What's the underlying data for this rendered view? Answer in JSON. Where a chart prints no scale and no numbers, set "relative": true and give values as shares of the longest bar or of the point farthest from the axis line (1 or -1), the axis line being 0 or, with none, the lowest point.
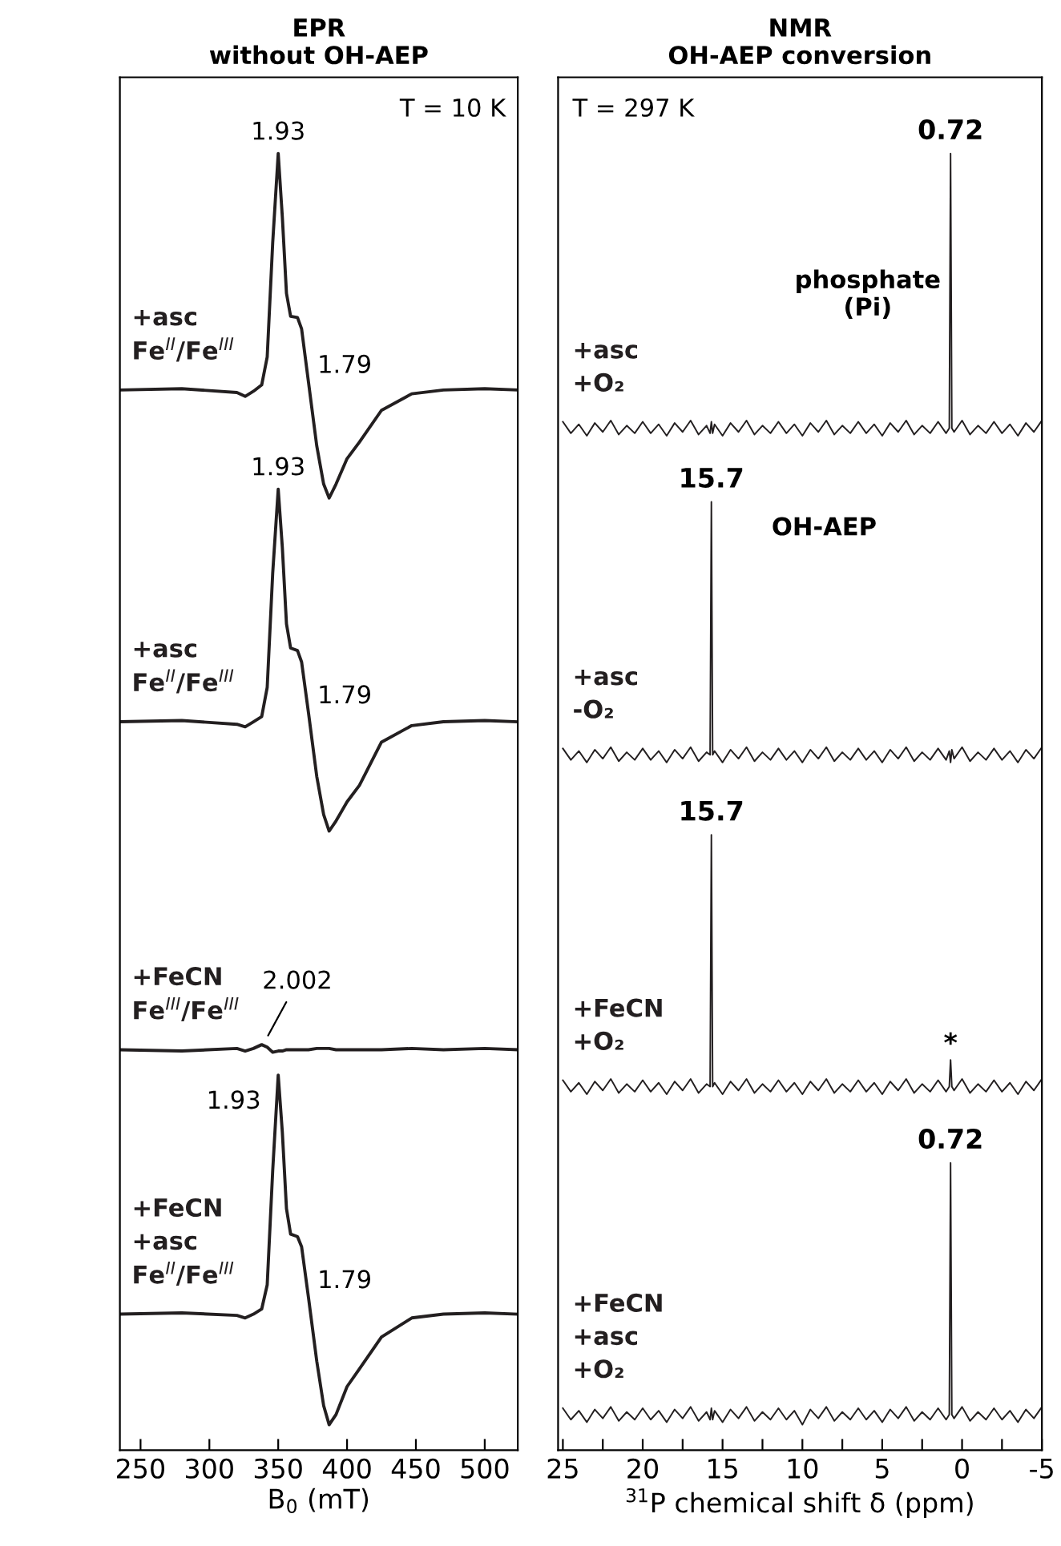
{
  "chart_data": [
    {
      "type": "line",
      "title": "EPR\nwithout OH-AEP",
      "xlabel": "B$_{0}$ (mT)",
      "relative": true,
      "tick_labels": "x",
      "xlim": [
        235,
        524
      ],
      "xticks": [
        250,
        300,
        350,
        400,
        450,
        500
      ],
      "x": [
        235,
        280,
        320,
        326,
        332,
        338,
        342,
        346,
        350,
        353,
        356,
        359,
        364,
        367,
        372,
        378,
        383,
        387,
        392,
        400,
        409,
        425,
        447,
        470,
        500,
        524
      ],
      "series": [
        {
          "name": "+asc\nFe$^{II}$/Fe$^{III}$",
          "color": "#231f20",
          "values": [
            0.814,
            0.815,
            0.812,
            0.809,
            0.813,
            0.818,
            0.84,
            0.93,
            1.0,
            0.95,
            0.89,
            0.872,
            0.871,
            0.862,
            0.82,
            0.77,
            0.74,
            0.729,
            0.74,
            0.76,
            0.773,
            0.798,
            0.811,
            0.814,
            0.815,
            0.814
          ]
        },
        {
          "name": "+asc\nFe$^{II}$/Fe$^{III}$",
          "color": "#231f20",
          "values": [
            0.553,
            0.554,
            0.551,
            0.549,
            0.553,
            0.557,
            0.58,
            0.67,
            0.736,
            0.69,
            0.63,
            0.611,
            0.609,
            0.6,
            0.56,
            0.51,
            0.48,
            0.467,
            0.475,
            0.49,
            0.503,
            0.537,
            0.55,
            0.553,
            0.554,
            0.553
          ]
        },
        {
          "name": "+FeCN\nFe$^{III}$/Fe$^{III}$",
          "color": "#231f20",
          "values": [
            0.295,
            0.294,
            0.296,
            0.294,
            0.296,
            0.299,
            0.297,
            0.293,
            0.294,
            0.294,
            0.295,
            0.295,
            0.295,
            0.295,
            0.295,
            0.296,
            0.296,
            0.296,
            0.295,
            0.295,
            0.295,
            0.295,
            0.296,
            0.295,
            0.296,
            0.295
          ]
        },
        {
          "name": "+FeCN\n+asc\nFe$^{II}$/Fe$^{III}$",
          "color": "#231f20",
          "values": [
            0.087,
            0.088,
            0.086,
            0.084,
            0.087,
            0.091,
            0.11,
            0.2,
            0.275,
            0.23,
            0.17,
            0.15,
            0.148,
            0.14,
            0.1,
            0.05,
            0.015,
            0.0,
            0.008,
            0.03,
            0.044,
            0.069,
            0.084,
            0.087,
            0.088,
            0.087
          ]
        }
      ],
      "annotations": [
        "T = 10 K",
        {
          "text": "1.93",
          "x": 350,
          "y": 1.0
        },
        {
          "text": "1.79",
          "x": 372,
          "y": 0.82
        },
        {
          "text": "1.93",
          "x": 350,
          "y": 0.736
        },
        {
          "text": "1.79",
          "x": 372,
          "y": 0.56
        },
        {
          "text": "2.002",
          "x": 338,
          "y": 0.297
        },
        {
          "text": "1.93",
          "x": 350,
          "y": 0.275
        },
        {
          "text": "1.79",
          "x": 372,
          "y": 0.1
        }
      ]
    },
    {
      "type": "line",
      "title": "NMR\nOH-AEP conversion",
      "xlabel": "$^{31}$P chemical shift δ (ppm)",
      "relative": true,
      "tick_labels": "x",
      "xlim": [
        25.3,
        -5
      ],
      "xticks": [
        25,
        {
          "value": 22.5,
          "label": null
        },
        20,
        {
          "value": 17.5,
          "label": null
        },
        15,
        {
          "value": 12.5,
          "label": null
        },
        10,
        {
          "value": 7.5,
          "label": null
        },
        5,
        {
          "value": 2.5,
          "label": null
        },
        0,
        {
          "value": -2.5,
          "label": null
        },
        -5
      ],
      "x": [
        25.0,
        24.5,
        24.0,
        23.5,
        23.0,
        22.5,
        22.0,
        21.5,
        21.0,
        20.5,
        20.0,
        19.5,
        19.0,
        18.5,
        18.0,
        17.5,
        17.0,
        16.5,
        16.0,
        15.78,
        15.7,
        15.62,
        15.5,
        15.0,
        14.5,
        14.0,
        13.5,
        13.0,
        12.5,
        12.0,
        11.5,
        11.0,
        10.5,
        10.0,
        9.5,
        9.0,
        8.5,
        8.0,
        7.5,
        7.0,
        6.5,
        6.0,
        5.5,
        5.0,
        4.5,
        4.0,
        3.5,
        3.0,
        2.5,
        2.0,
        1.5,
        1.0,
        0.8,
        0.72,
        0.64,
        0.5,
        0.0,
        -0.5,
        -1.0,
        -1.5,
        -2.0,
        -2.5,
        -3.0,
        -3.5,
        -4.0,
        -4.5,
        -5.0
      ],
      "series": [
        {
          "name": "+asc\n+O₂",
          "color": "#231f20",
          "values": [
            0.789,
            0.78,
            0.787,
            0.778,
            0.788,
            0.781,
            0.79,
            0.779,
            0.786,
            0.78,
            0.789,
            0.78,
            0.787,
            0.778,
            0.788,
            0.781,
            0.79,
            0.779,
            0.786,
            0.78,
            0.789,
            0.78,
            0.787,
            0.778,
            0.788,
            0.781,
            0.79,
            0.779,
            0.786,
            0.78,
            0.789,
            0.78,
            0.787,
            0.778,
            0.788,
            0.781,
            0.79,
            0.779,
            0.786,
            0.78,
            0.789,
            0.78,
            0.787,
            0.778,
            0.788,
            0.781,
            0.79,
            0.779,
            0.786,
            0.78,
            0.789,
            0.78,
            0.784,
            1.0,
            0.784,
            0.781,
            0.79,
            0.779,
            0.786,
            0.78,
            0.789,
            0.78,
            0.787,
            0.778,
            0.788,
            0.781,
            0.79
          ]
        },
        {
          "name": "+asc\n-O₂",
          "color": "#231f20",
          "values": [
            0.532,
            0.523,
            0.53,
            0.521,
            0.531,
            0.524,
            0.533,
            0.522,
            0.529,
            0.523,
            0.532,
            0.523,
            0.53,
            0.521,
            0.531,
            0.524,
            0.533,
            0.522,
            0.529,
            0.527,
            0.726,
            0.527,
            0.53,
            0.521,
            0.531,
            0.524,
            0.533,
            0.522,
            0.529,
            0.523,
            0.532,
            0.523,
            0.53,
            0.521,
            0.531,
            0.524,
            0.533,
            0.522,
            0.529,
            0.523,
            0.532,
            0.523,
            0.53,
            0.521,
            0.531,
            0.524,
            0.533,
            0.522,
            0.529,
            0.523,
            0.532,
            0.523,
            0.53,
            0.521,
            0.531,
            0.524,
            0.533,
            0.522,
            0.529,
            0.523,
            0.532,
            0.523,
            0.53,
            0.521,
            0.531,
            0.524,
            0.533
          ]
        },
        {
          "name": "+FeCN\n+O₂",
          "color": "#231f20",
          "values": [
            0.271,
            0.262,
            0.269,
            0.26,
            0.27,
            0.263,
            0.272,
            0.261,
            0.268,
            0.262,
            0.271,
            0.262,
            0.269,
            0.26,
            0.27,
            0.263,
            0.272,
            0.261,
            0.268,
            0.266,
            0.464,
            0.266,
            0.269,
            0.26,
            0.27,
            0.263,
            0.272,
            0.261,
            0.268,
            0.262,
            0.271,
            0.262,
            0.269,
            0.26,
            0.27,
            0.263,
            0.272,
            0.261,
            0.268,
            0.262,
            0.271,
            0.262,
            0.269,
            0.26,
            0.27,
            0.263,
            0.272,
            0.261,
            0.268,
            0.262,
            0.271,
            0.262,
            0.266,
            0.287,
            0.266,
            0.263,
            0.272,
            0.261,
            0.268,
            0.262,
            0.271,
            0.262,
            0.269,
            0.26,
            0.27,
            0.263,
            0.272
          ]
        },
        {
          "name": "+FeCN\n+asc\n+O₂",
          "color": "#231f20",
          "values": [
            0.013,
            0.004,
            0.011,
            0.002,
            0.012,
            0.005,
            0.014,
            0.003,
            0.01,
            0.004,
            0.013,
            0.004,
            0.011,
            0.002,
            0.012,
            0.005,
            0.014,
            0.003,
            0.01,
            0.004,
            0.013,
            0.004,
            0.011,
            0.002,
            0.012,
            0.005,
            0.014,
            0.003,
            0.01,
            0.004,
            0.013,
            0.004,
            0.011,
            0.0,
            0.012,
            0.005,
            0.014,
            0.003,
            0.01,
            0.004,
            0.013,
            0.004,
            0.011,
            0.002,
            0.012,
            0.005,
            0.014,
            0.003,
            0.01,
            0.004,
            0.013,
            0.004,
            0.008,
            0.206,
            0.008,
            0.005,
            0.014,
            0.003,
            0.01,
            0.004,
            0.013,
            0.004,
            0.011,
            0.002,
            0.012,
            0.005,
            0.014
          ]
        }
      ],
      "annotations": [
        "T = 297 K",
        {
          "text": "0.72",
          "x": 0.72,
          "y": 1.0
        },
        "phosphate\n(Pi)",
        {
          "text": "15.7",
          "x": 15.7,
          "y": 0.726
        },
        "OH-AEP",
        {
          "text": "15.7",
          "x": 15.7,
          "y": 0.464
        },
        {
          "text": "*",
          "x": 0.72,
          "y": 0.287
        },
        {
          "text": "0.72",
          "x": 0.72,
          "y": 0.206
        }
      ]
    }
  ]
}
